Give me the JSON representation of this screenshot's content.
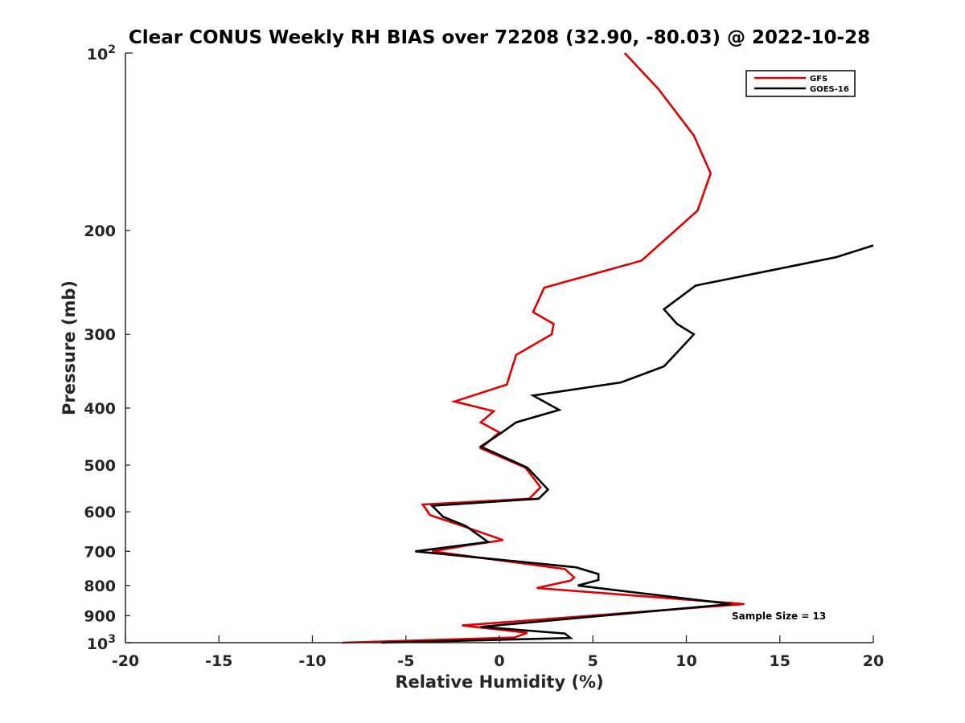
{
  "chart_data": {
    "type": "line",
    "title": "Clear CONUS Weekly RH BIAS over 72208 (32.90, -80.03) @ 2022-10-28",
    "xlabel": "Relative Humidity (%)",
    "ylabel": "Pressure (mb)",
    "xlim": [
      -20,
      20
    ],
    "ylim": [
      100,
      1000
    ],
    "y_scale": "log",
    "y_reversed": true,
    "grid": false,
    "legend_placement": "top-right",
    "x_ticks": [
      -20,
      -15,
      -10,
      -5,
      0,
      5,
      10,
      15,
      20
    ],
    "x_tick_labels": [
      "-20",
      "-15",
      "-10",
      "-5",
      "0",
      "5",
      "10",
      "15",
      "20"
    ],
    "y_ticks": [
      200,
      300,
      400,
      500,
      600,
      700,
      800,
      900
    ],
    "y_tick_labels": [
      "200",
      "300",
      "400",
      "500",
      "600",
      "700",
      "800",
      "900"
    ],
    "y_tick_top": {
      "base": "10",
      "exp": "2"
    },
    "y_tick_bottom": {
      "base": "10",
      "exp": "3"
    },
    "annotation": "Sample Size = 13",
    "series": [
      {
        "name": "GFS",
        "color": "#e00000",
        "points": [
          {
            "x": 6.7,
            "y": 100
          },
          {
            "x": 8.5,
            "y": 115
          },
          {
            "x": 10.4,
            "y": 138
          },
          {
            "x": 11.3,
            "y": 160
          },
          {
            "x": 10.6,
            "y": 185
          },
          {
            "x": 7.6,
            "y": 225
          },
          {
            "x": 2.4,
            "y": 250
          },
          {
            "x": 1.8,
            "y": 275
          },
          {
            "x": 2.9,
            "y": 288
          },
          {
            "x": 2.8,
            "y": 300
          },
          {
            "x": 0.9,
            "y": 325
          },
          {
            "x": 0.7,
            "y": 340
          },
          {
            "x": 0.4,
            "y": 365
          },
          {
            "x": -2.4,
            "y": 390
          },
          {
            "x": -0.3,
            "y": 405
          },
          {
            "x": -1.0,
            "y": 423
          },
          {
            "x": 0.0,
            "y": 440
          },
          {
            "x": -1.0,
            "y": 468
          },
          {
            "x": 1.4,
            "y": 505
          },
          {
            "x": 2.2,
            "y": 545
          },
          {
            "x": 1.6,
            "y": 570
          },
          {
            "x": -4.1,
            "y": 583
          },
          {
            "x": -3.7,
            "y": 608
          },
          {
            "x": -2.1,
            "y": 632
          },
          {
            "x": 0.2,
            "y": 670
          },
          {
            "x": -1.6,
            "y": 683
          },
          {
            "x": -3.6,
            "y": 700
          },
          {
            "x": 3.5,
            "y": 750
          },
          {
            "x": 4.0,
            "y": 775
          },
          {
            "x": 3.8,
            "y": 785
          },
          {
            "x": 2.0,
            "y": 808
          },
          {
            "x": 13.1,
            "y": 860
          },
          {
            "x": -2.0,
            "y": 935
          },
          {
            "x": 1.5,
            "y": 962
          },
          {
            "x": 0.8,
            "y": 980
          },
          {
            "x": -8.4,
            "y": 1000
          }
        ]
      },
      {
        "name": "GOES-16",
        "color": "#000000",
        "points": [
          {
            "x": 20.0,
            "y": 212
          },
          {
            "x": 18.0,
            "y": 222
          },
          {
            "x": 10.5,
            "y": 248
          },
          {
            "x": 8.8,
            "y": 272
          },
          {
            "x": 9.5,
            "y": 288
          },
          {
            "x": 10.4,
            "y": 300
          },
          {
            "x": 9.5,
            "y": 322
          },
          {
            "x": 8.8,
            "y": 340
          },
          {
            "x": 6.5,
            "y": 362
          },
          {
            "x": 1.8,
            "y": 381
          },
          {
            "x": 3.2,
            "y": 403
          },
          {
            "x": 0.9,
            "y": 423
          },
          {
            "x": 0.0,
            "y": 443
          },
          {
            "x": -1.0,
            "y": 465
          },
          {
            "x": 1.5,
            "y": 505
          },
          {
            "x": 2.6,
            "y": 550
          },
          {
            "x": 2.1,
            "y": 570
          },
          {
            "x": -3.6,
            "y": 586
          },
          {
            "x": -3.0,
            "y": 612
          },
          {
            "x": -1.8,
            "y": 634
          },
          {
            "x": -0.6,
            "y": 675
          },
          {
            "x": -4.5,
            "y": 700
          },
          {
            "x": 4.1,
            "y": 745
          },
          {
            "x": 5.3,
            "y": 765
          },
          {
            "x": 5.3,
            "y": 783
          },
          {
            "x": 4.2,
            "y": 800
          },
          {
            "x": 12.4,
            "y": 860
          },
          {
            "x": -1.0,
            "y": 940
          },
          {
            "x": 3.5,
            "y": 965
          },
          {
            "x": 3.8,
            "y": 982
          },
          {
            "x": -6.3,
            "y": 1000
          }
        ]
      }
    ]
  }
}
